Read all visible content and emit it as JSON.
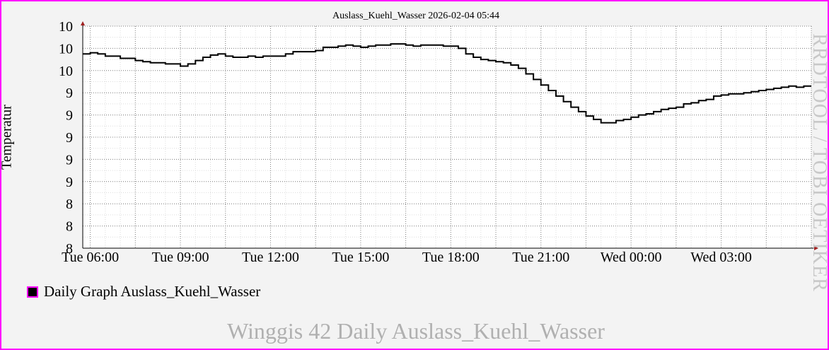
{
  "chart_data": {
    "type": "line",
    "title": "Auslass_Kuehl_Wasser 2026-02-04 05:44",
    "ylabel": "Temperatur",
    "y_tick_labels": [
      "10",
      "10",
      "10",
      "9",
      "9",
      "9",
      "9",
      "9",
      "8",
      "8",
      "8"
    ],
    "ylim_display": [
      8,
      10
    ],
    "x_tick_labels": [
      "Tue 06:00",
      "Tue 09:00",
      "Tue 12:00",
      "Tue 15:00",
      "Tue 18:00",
      "Tue 21:00",
      "Wed 00:00",
      "Wed 03:00"
    ],
    "x_hours": [
      0,
      3,
      6,
      9,
      12,
      15,
      18,
      21
    ],
    "xlim_hours": [
      -0.25,
      24.0
    ],
    "grid": true,
    "step": true,
    "series": [
      {
        "name": "Daily Graph Auslass_Kuehl_Wasser",
        "color": "#000000",
        "x": [
          -0.25,
          0.0,
          0.25,
          0.5,
          0.75,
          1.0,
          1.25,
          1.5,
          1.75,
          2.0,
          2.25,
          2.5,
          2.75,
          3.0,
          3.25,
          3.5,
          3.75,
          4.0,
          4.25,
          4.5,
          4.75,
          5.0,
          5.25,
          5.5,
          5.75,
          6.0,
          6.25,
          6.5,
          6.75,
          7.0,
          7.25,
          7.5,
          7.75,
          8.0,
          8.25,
          8.5,
          8.75,
          9.0,
          9.25,
          9.5,
          9.75,
          10.0,
          10.25,
          10.5,
          10.75,
          11.0,
          11.25,
          11.5,
          11.75,
          12.0,
          12.25,
          12.5,
          12.75,
          13.0,
          13.25,
          13.5,
          13.75,
          14.0,
          14.25,
          14.5,
          14.75,
          15.0,
          15.25,
          15.5,
          15.75,
          16.0,
          16.25,
          16.5,
          16.75,
          17.0,
          17.25,
          17.5,
          17.75,
          18.0,
          18.25,
          18.5,
          18.75,
          19.0,
          19.25,
          19.5,
          19.75,
          20.0,
          20.25,
          20.5,
          20.75,
          21.0,
          21.25,
          21.5,
          21.75,
          22.0,
          22.25,
          22.5,
          22.75,
          23.0,
          23.25,
          23.5,
          23.75
        ],
        "y": [
          9.75,
          9.76,
          9.75,
          9.73,
          9.73,
          9.71,
          9.71,
          9.69,
          9.68,
          9.67,
          9.67,
          9.66,
          9.66,
          9.64,
          9.66,
          9.69,
          9.72,
          9.74,
          9.75,
          9.73,
          9.72,
          9.72,
          9.73,
          9.72,
          9.73,
          9.73,
          9.73,
          9.75,
          9.77,
          9.77,
          9.77,
          9.78,
          9.81,
          9.81,
          9.82,
          9.83,
          9.82,
          9.81,
          9.82,
          9.83,
          9.83,
          9.84,
          9.84,
          9.83,
          9.82,
          9.83,
          9.83,
          9.83,
          9.82,
          9.82,
          9.8,
          9.75,
          9.72,
          9.7,
          9.69,
          9.68,
          9.67,
          9.65,
          9.62,
          9.57,
          9.52,
          9.47,
          9.42,
          9.37,
          9.32,
          9.27,
          9.23,
          9.19,
          9.16,
          9.13,
          9.13,
          9.15,
          9.16,
          9.18,
          9.2,
          9.21,
          9.23,
          9.25,
          9.26,
          9.27,
          9.3,
          9.31,
          9.33,
          9.34,
          9.37,
          9.38,
          9.39,
          9.39,
          9.4,
          9.41,
          9.42,
          9.43,
          9.44,
          9.45,
          9.46,
          9.45,
          9.46
        ]
      }
    ]
  },
  "legend": {
    "label": "Daily Graph Auslass_Kuehl_Wasser",
    "swatch_color": "#000000"
  },
  "watermark": "RRDTOOL / TOBI OETIKER",
  "footer": "Winggis 42 Daily Auslass_Kuehl_Wasser",
  "colors": {
    "frame_border": "#ff00ff",
    "background": "#f3f3f3",
    "plot_background": "#ffffff",
    "axis_arrow": "#a02020"
  }
}
